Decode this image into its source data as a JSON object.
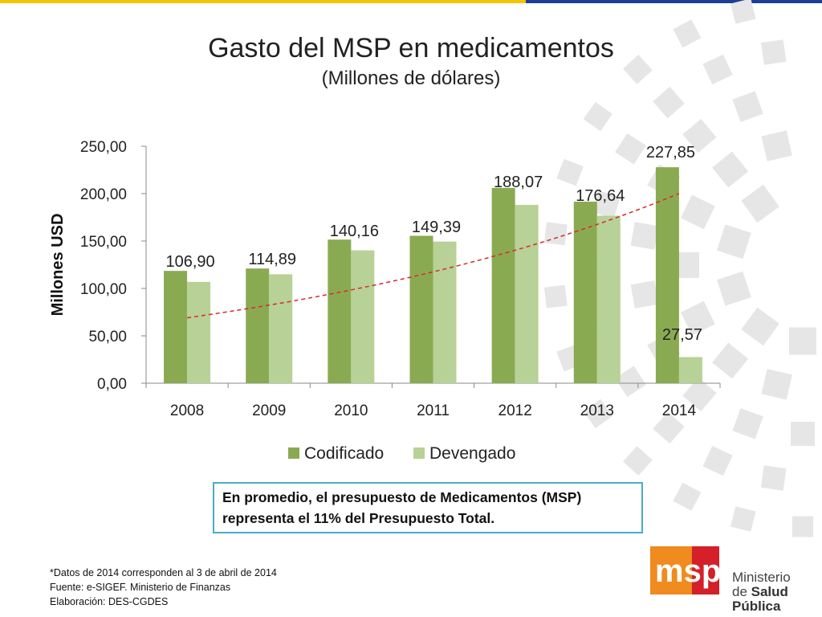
{
  "colors": {
    "codificado": "#8aaa52",
    "devengado": "#b8d196",
    "trend": "#d62b2b",
    "note_border": "#4bacc6",
    "logo_orange": "#ef8b1f",
    "logo_red": "#d42028",
    "stripe_yellow": "#f2c500",
    "stripe_blue": "#1c3f95"
  },
  "header": {
    "title": "Gasto del MSP en medicamentos",
    "subtitle": "(Millones de dólares)"
  },
  "chart_data": {
    "type": "bar",
    "title": "Gasto del MSP en medicamentos",
    "subtitle": "(Millones de dólares)",
    "xlabel": "",
    "ylabel": "Millones USD",
    "ylim": [
      0,
      250
    ],
    "yticks": [
      "0,00",
      "50,00",
      "100,00",
      "150,00",
      "200,00",
      "250,00"
    ],
    "categories": [
      "2008",
      "2009",
      "2010",
      "2011",
      "2012",
      "2013",
      "2014"
    ],
    "series": [
      {
        "name": "Codificado",
        "values": [
          118.5,
          121.0,
          151.5,
          155.5,
          206.0,
          191.5,
          227.85
        ],
        "labels": [
          "",
          "",
          "",
          "",
          "",
          "",
          "227,85"
        ]
      },
      {
        "name": "Devengado",
        "values": [
          106.9,
          114.89,
          140.16,
          149.39,
          188.07,
          176.64,
          27.57
        ],
        "labels": [
          "106,90",
          "114,89",
          "140,16",
          "149,39",
          "188,07",
          "176,64",
          "27,57"
        ]
      }
    ],
    "trendline": {
      "type": "exponential",
      "start": 69,
      "end": 200,
      "style": "dashed"
    },
    "grid": false,
    "legend": "bottom"
  },
  "note": {
    "text": "En promedio, el presupuesto de Medicamentos (MSP) representa el 11% del Presupuesto Total."
  },
  "footer": {
    "line1": "*Datos de 2014 corresponden al 3 de abril de 2014",
    "line2": "Fuente: e-SIGEF. Ministerio de Finanzas",
    "line3": "Elaboración: DES-CGDES"
  },
  "logo": {
    "mark": "msp",
    "line1": "Ministerio",
    "line2_prefix": "de ",
    "line2_bold": "Salud Pública"
  }
}
